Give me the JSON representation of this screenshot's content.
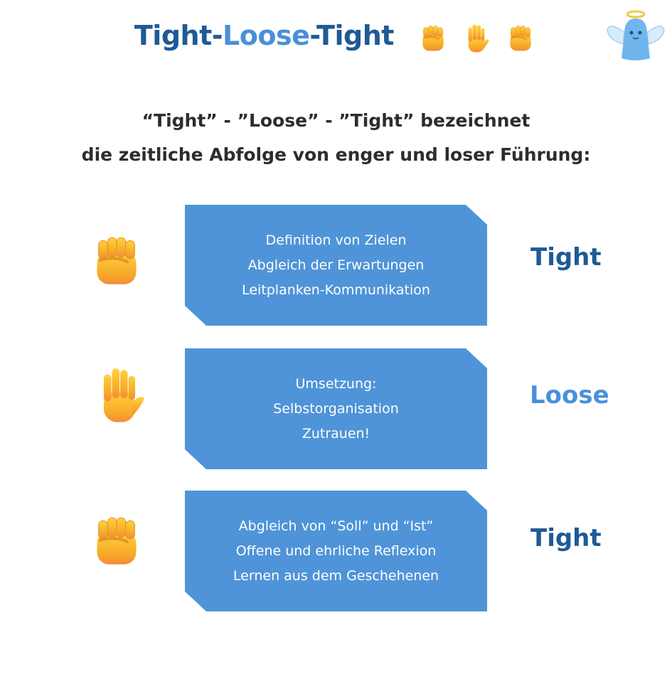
{
  "header": {
    "title_part1": "Tight",
    "title_sep1": "-",
    "title_part2": "Loose",
    "title_sep2": "-",
    "title_part3": "Tight",
    "emojis": [
      "fist-icon",
      "raised-hand-icon",
      "fist-icon"
    ],
    "mascot": "angel-icon"
  },
  "subtitle": {
    "line1": "“Tight” - ”Loose” - ”Tight” bezeichnet",
    "line2": "die zeitliche Abfolge von enger und loser Führung:"
  },
  "steps": [
    {
      "icon": "fist-icon",
      "lines": [
        "Definition von Zielen",
        "Abgleich der Erwartungen",
        "Leitplanken-Kommunikation"
      ],
      "label": "Tight"
    },
    {
      "icon": "raised-hand-icon",
      "lines": [
        "Umsetzung:",
        "Selbstorganisation",
        "Zutrauen!"
      ],
      "label": "Loose"
    },
    {
      "icon": "fist-icon",
      "lines": [
        "Abgleich von “Soll” und “Ist”",
        "Offene und ehrliche Reflexion",
        "Lernen aus dem Geschehenen"
      ],
      "label": "Tight"
    }
  ],
  "colors": {
    "box": "#4f94d8",
    "tight": "#1f5a96",
    "loose": "#4a90d9",
    "hand": "#f7b531"
  }
}
